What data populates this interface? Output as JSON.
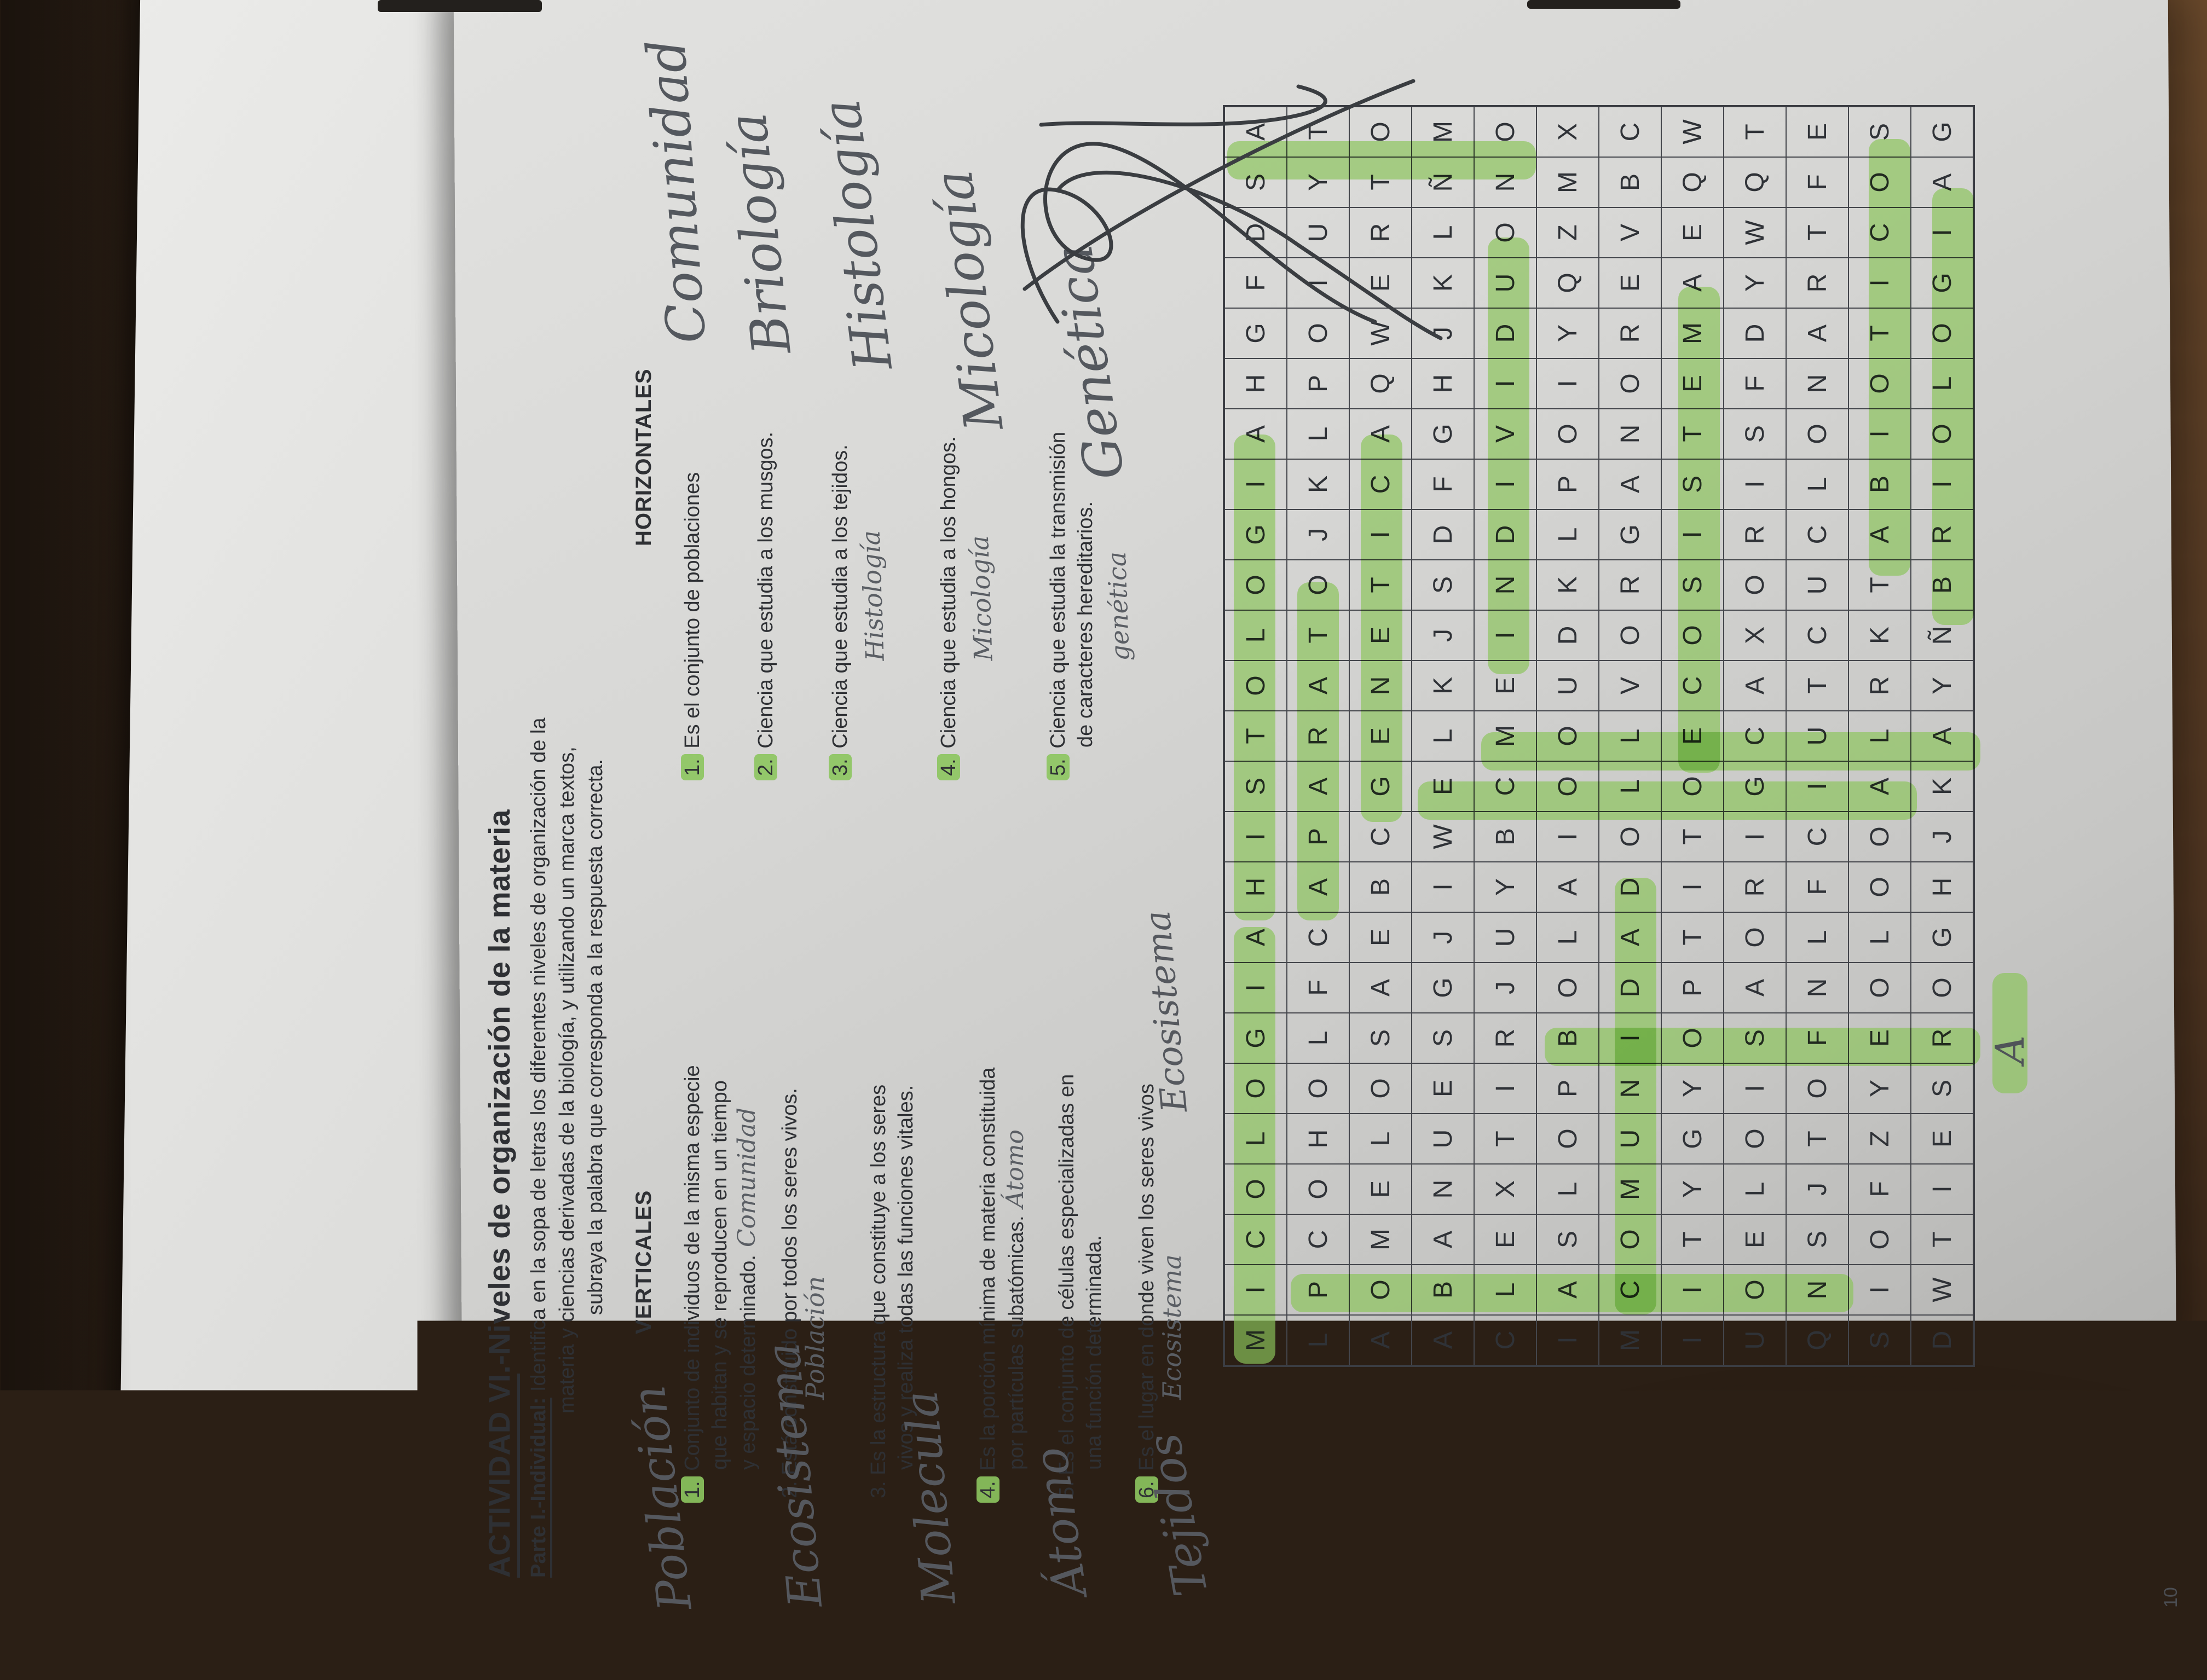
{
  "title": "ACTIVIDAD VI.-Niveles de organización de la materia",
  "title_underlined_part": "ACTIVIDAD VI",
  "intro": {
    "lead": "Parte I.-Individual:",
    "line1": " Identifica en la sopa de letras los diferentes niveles de organización de la",
    "line2": "materia y ciencias derivadas de la biología, y utilizando un marca textos,",
    "line3": "subraya la palabra que corresponda a la respuesta correcta."
  },
  "verticales": {
    "heading": "VERTICALES",
    "items": [
      {
        "num": "1.",
        "num_highlight": true,
        "lines": [
          "Conjunto de individuos de la misma especie",
          "que habitan y se reproducen en un  tiempo",
          "y espacio determinado."
        ],
        "inline_answer": "Comunidad",
        "margin_answer": "Población"
      },
      {
        "num": "2.",
        "num_highlight": false,
        "lines": [
          "Está constituido por todos los seres vivos."
        ],
        "under_answer": "Población",
        "margin_answer": "Ecosistema"
      },
      {
        "num": "3.",
        "num_highlight": false,
        "lines": [
          "Es la estructura que constituye a los  seres",
          "vivos  y  realiza todas  las  funciones  vitales."
        ],
        "margin_answer": "Molecula"
      },
      {
        "num": "4.",
        "num_highlight": true,
        "lines": [
          "Es la porción mínima de materia constituida",
          "por  partículas subatómicas."
        ],
        "inline_answer": "Átomo",
        "margin_answer": "Átomo"
      },
      {
        "num": "5.",
        "num_highlight": false,
        "lines": [
          "Es el conjunto de células especializadas en",
          "una función determinada."
        ],
        "margin_answer": "Tejidos"
      },
      {
        "num": "6.",
        "num_highlight": true,
        "lines": [
          "Es el lugar en donde viven los seres vivos"
        ],
        "under_answer": "Ecosistema"
      }
    ]
  },
  "horizontales": {
    "heading": "HORIZONTALES",
    "items": [
      {
        "num": "1.",
        "num_highlight": true,
        "lines": [
          "Es el conjunto de poblaciones"
        ],
        "big_answer": "Comunidad"
      },
      {
        "num": "2.",
        "num_highlight": true,
        "lines": [
          "Ciencia que estudia a los musgos."
        ],
        "big_answer": "Briología"
      },
      {
        "num": "3.",
        "num_highlight": true,
        "lines": [
          "Ciencia que estudia a los tejidos."
        ],
        "small_answer": "Histología",
        "big_answer": "Histología"
      },
      {
        "num": "4.",
        "num_highlight": true,
        "lines": [
          "Ciencia que estudia a los hongos."
        ],
        "small_answer": "Micología",
        "big_answer": "Micología"
      },
      {
        "num": "5.",
        "num_highlight": true,
        "lines": [
          "Ciencia que estudia  la  transmisión",
          "de caracteres hereditarios."
        ],
        "small_answer": "genética",
        "big_answer": "Genética"
      }
    ]
  },
  "grid": {
    "rows": [
      "MICOLOGIAHISTOLOGIAHGFDSA",
      "LPCOHOLFCAPARATOJKLPOIUYT",
      "AOMELOSAEBCGENETICAQWERTO",
      "ABANUESGJIWELKJSDFGHJKLÑM",
      "CLEXTIRJUYBCMEINDIVIDUONO",
      "IASLOPBOLAIOOUDKLPOIYQZMX",
      "MCOMUNIDADOLLVORGANOREVBC",
      "IITYGYOPTITOECOSISTEMAEQW",
      "UOELOISAORIGCAXORISFDYWQT",
      "QNSJTOFNLFCIUTCUCLONARTFE",
      "SIOFZYEOLOOALRKTABIOTICOS",
      "DWTIESROGHJKAYÑBRIOLOGIAG"
    ],
    "highlights": [
      {
        "word": "MICOLOGIA",
        "dir": "h",
        "row": 1,
        "colStart": 1,
        "colEnd": 9
      },
      {
        "word": "HISTOLOGIA",
        "dir": "h",
        "row": 1,
        "colStart": 10,
        "colEnd": 19
      },
      {
        "word": "APARATO",
        "dir": "h",
        "row": 2,
        "colStart": 10,
        "colEnd": 16
      },
      {
        "word": "GENETICA",
        "dir": "h",
        "row": 3,
        "colStart": 12,
        "colEnd": 19
      },
      {
        "word": "INDIVIDUO",
        "dir": "h",
        "row": 5,
        "colStart": 15,
        "colEnd": 23
      },
      {
        "word": "COMUNIDAD",
        "dir": "h",
        "row": 7,
        "colStart": 2,
        "colEnd": 10
      },
      {
        "word": "ECOSISTEMA",
        "dir": "h",
        "row": 8,
        "colStart": 13,
        "colEnd": 22
      },
      {
        "word": "ABIOTICOS",
        "dir": "h",
        "row": 11,
        "colStart": 17,
        "colEnd": 25
      },
      {
        "word": "BRIOLOGIA",
        "dir": "h",
        "row": 12,
        "colStart": 16,
        "colEnd": 24
      },
      {
        "word": "POBLACION",
        "dir": "v",
        "col": 2,
        "rowStart": 2,
        "rowEnd": 10
      },
      {
        "word": "BIOSFER(A)",
        "dir": "v",
        "col": 7,
        "rowStart": 6,
        "rowEnd": 12,
        "tail": true
      },
      {
        "word": "ECOLOGIA",
        "dir": "v",
        "col": 12,
        "rowStart": 4,
        "rowEnd": 11
      },
      {
        "word": "MOLECULA",
        "dir": "v",
        "col": 13,
        "rowStart": 5,
        "rowEnd": 12
      },
      {
        "word": "ATOMO",
        "dir": "v",
        "col": 25,
        "rowStart": 1,
        "rowEnd": 5
      }
    ],
    "tail_letter": "A"
  },
  "page_number": "10"
}
